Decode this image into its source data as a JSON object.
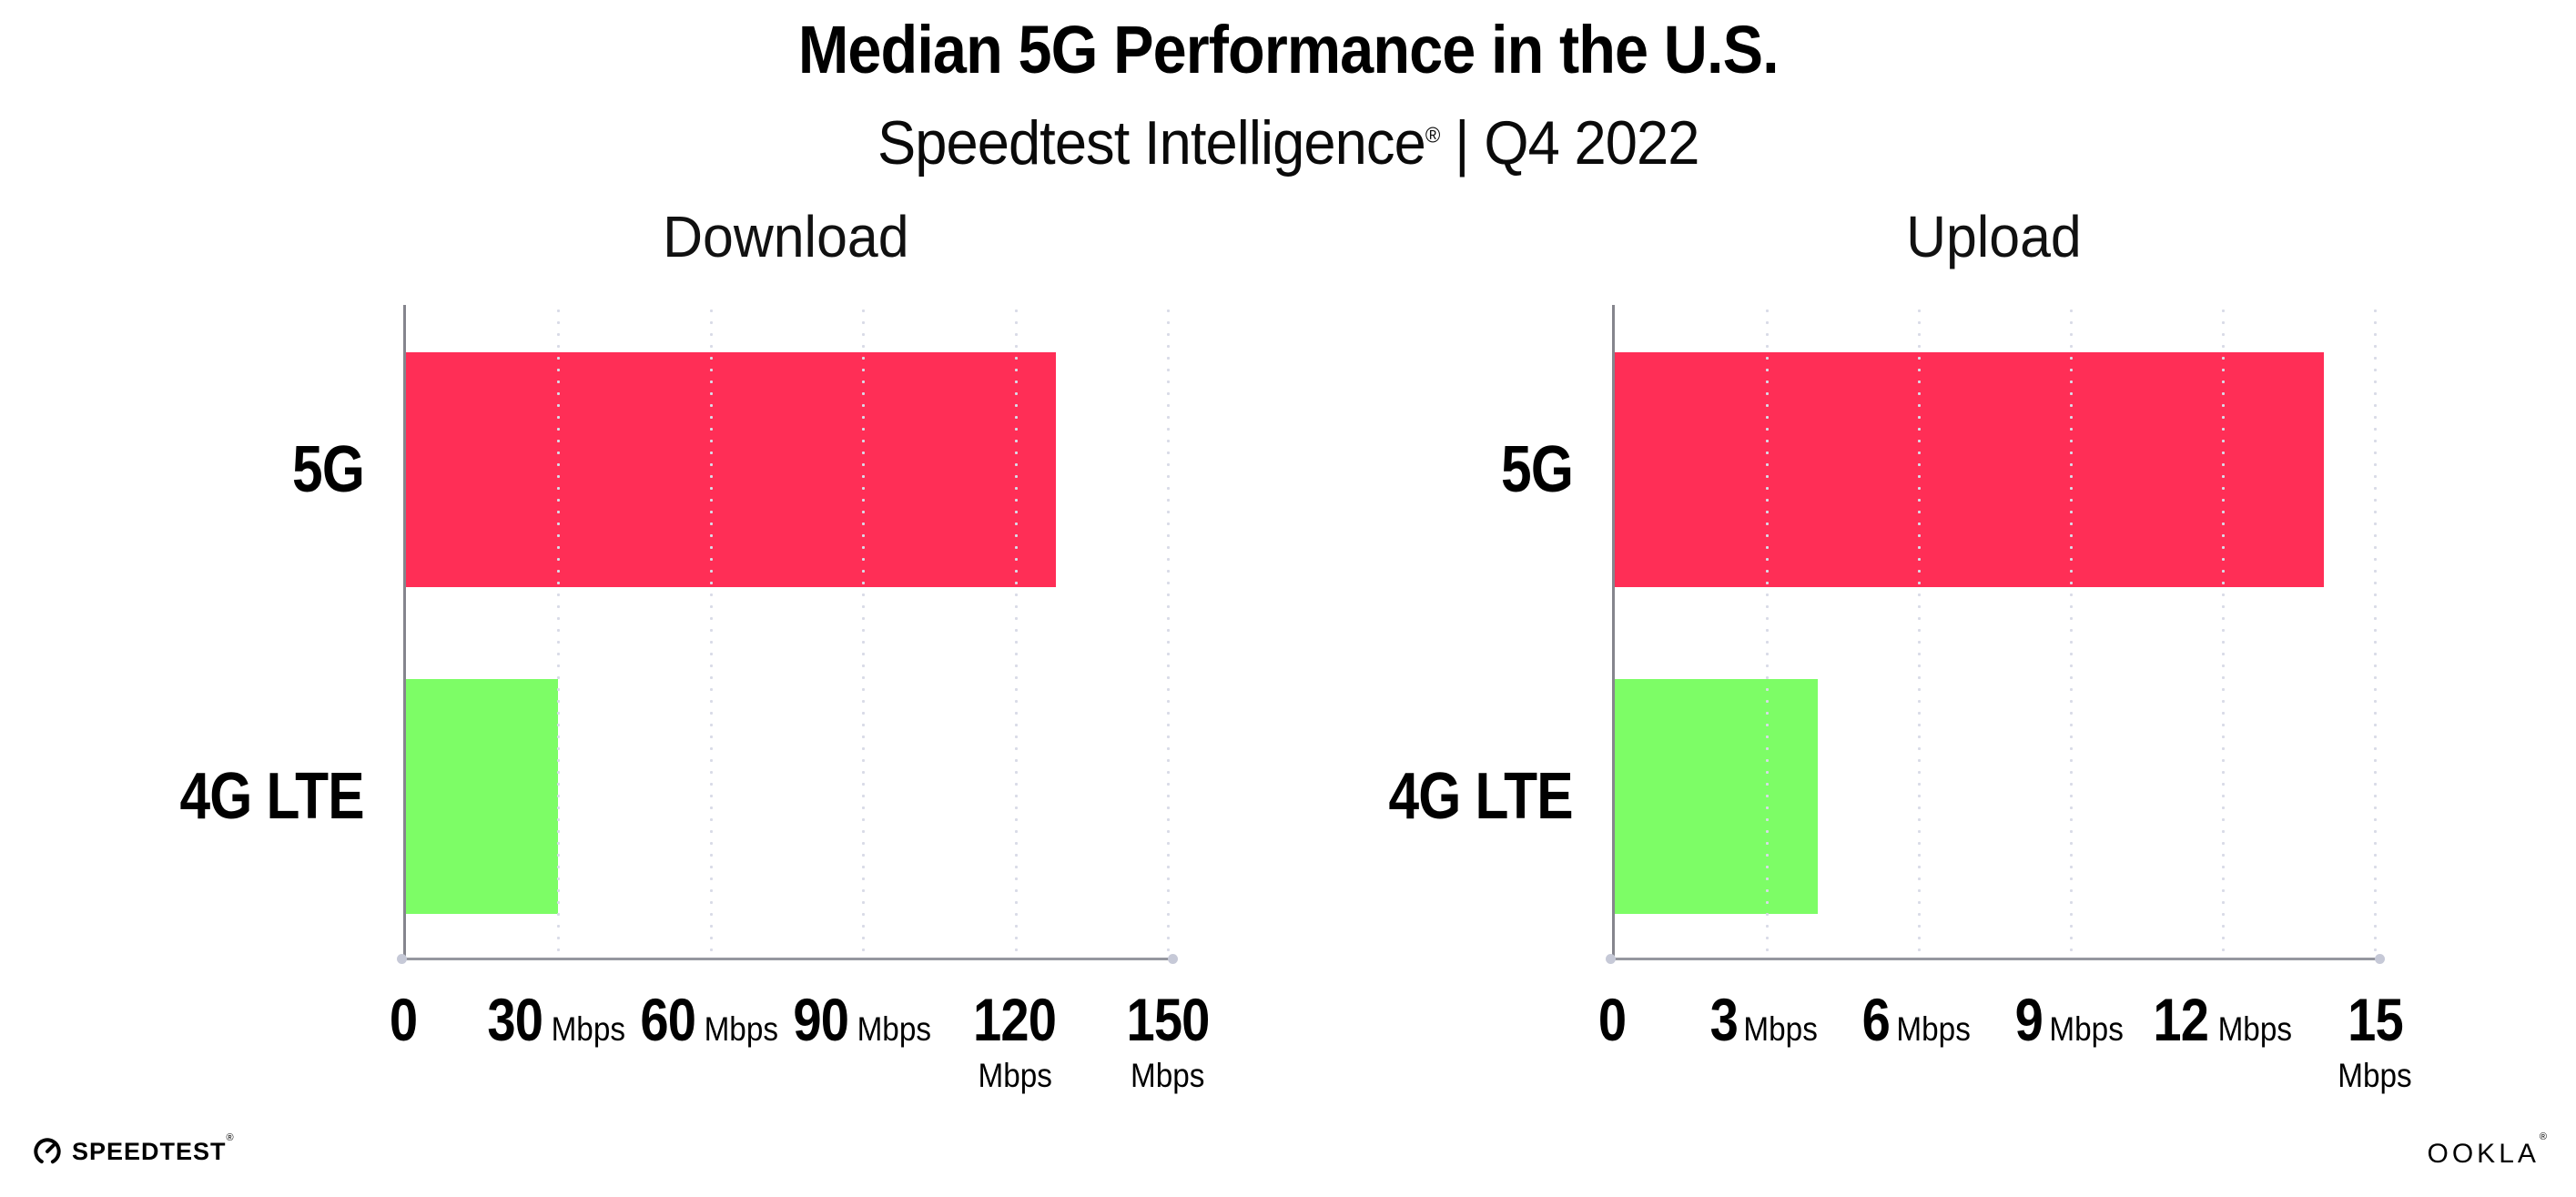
{
  "header": {
    "title": "Median 5G Performance in the U.S.",
    "subtitle_brand": "Speedtest Intelligence",
    "subtitle_mark": "®",
    "subtitle_separator": "|",
    "subtitle_period": "Q4 2022"
  },
  "chart_data": [
    {
      "type": "bar",
      "orientation": "horizontal",
      "title": "Download",
      "categories": [
        "5G",
        "4G LTE"
      ],
      "values": [
        128,
        30
      ],
      "unit": "Mbps",
      "xlim": [
        0,
        150
      ],
      "xticks": [
        0,
        30,
        60,
        90,
        120,
        150
      ],
      "bar_colors": [
        "#FF2E56",
        "#7DFD66"
      ],
      "grid": "dotted-vertical",
      "legend_position": "none"
    },
    {
      "type": "bar",
      "orientation": "horizontal",
      "title": "Upload",
      "categories": [
        "5G",
        "4G LTE"
      ],
      "values": [
        14,
        4
      ],
      "unit": "Mbps",
      "xlim": [
        0,
        15
      ],
      "xticks": [
        0,
        3,
        6,
        9,
        12,
        15
      ],
      "bar_colors": [
        "#FF2E56",
        "#7DFD66"
      ],
      "grid": "dotted-vertical",
      "legend_position": "none"
    }
  ],
  "footer": {
    "speedtest_logo_text": "SPEEDTEST",
    "speedtest_logo_mark": "®",
    "ookla_logo_text": "OOKLA",
    "ookla_logo_mark": "®"
  },
  "colors": {
    "bar_5g": "#FF2E56",
    "bar_4g_lte": "#7DFD66",
    "gridline": "#D9DBE7",
    "axis_line": "#95979F",
    "axis_end_dot": "#C6C9D7",
    "text": "#000000",
    "background": "#FFFFFF"
  }
}
